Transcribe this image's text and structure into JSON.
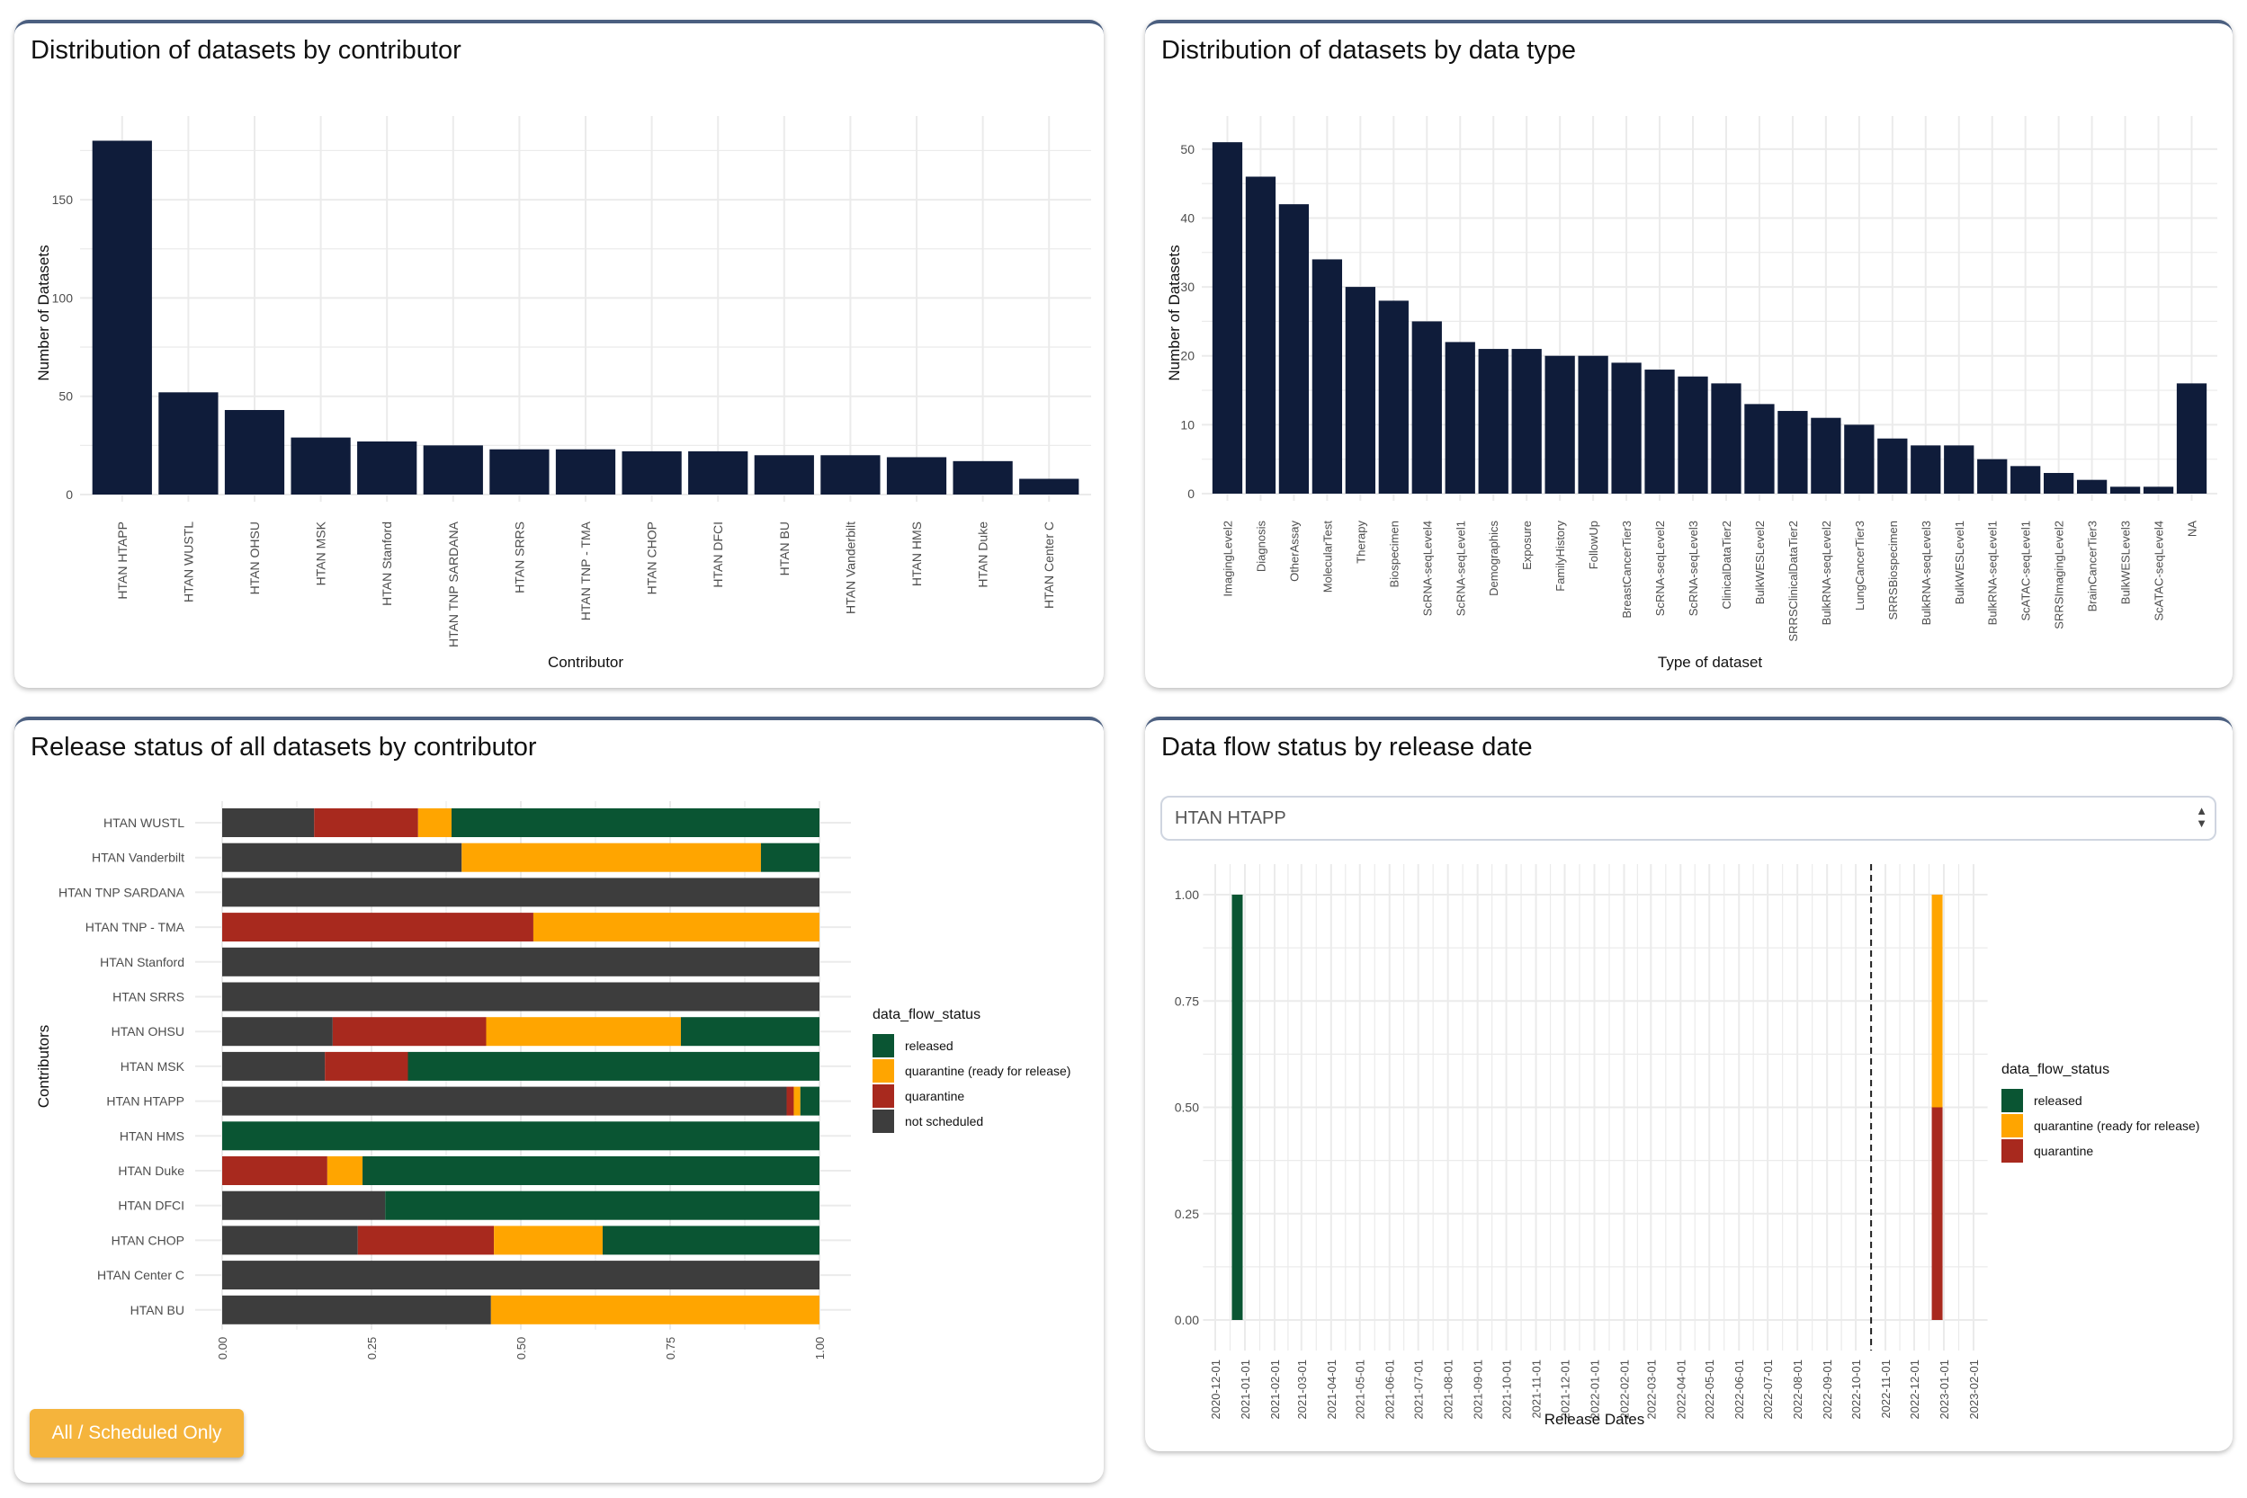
{
  "colors": {
    "bar": "#0f1c3a",
    "released": "#0a5533",
    "quarantine_ready": "#ffa500",
    "quarantine": "#a8291e",
    "not_scheduled": "#3d3d3d",
    "button": "#f5b43c",
    "panel_border": "#4b5f80"
  },
  "panels": {
    "contributor": {
      "title": "Distribution of datasets by contributor"
    },
    "datatype": {
      "title": "Distribution of datasets by data type"
    },
    "release": {
      "title": "Release status of all datasets by contributor",
      "button_label": "All / Scheduled Only"
    },
    "flow": {
      "title": "Data flow status by release date",
      "select_value": "HTAN HTAPP",
      "select_icon": "up-down-arrows-icon"
    }
  },
  "chart_data": [
    {
      "type": "bar",
      "xlabel": "Contributor",
      "ylabel": "Number of Datasets",
      "ylim": [
        0,
        188
      ],
      "yticks": [
        0,
        50,
        100,
        150
      ],
      "grid": true,
      "categories": [
        "HTAN HTAPP",
        "HTAN WUSTL",
        "HTAN OHSU",
        "HTAN MSK",
        "HTAN Stanford",
        "HTAN TNP SARDANA",
        "HTAN SRRS",
        "HTAN TNP - TMA",
        "HTAN CHOP",
        "HTAN DFCI",
        "HTAN BU",
        "HTAN Vanderbilt",
        "HTAN HMS",
        "HTAN Duke",
        "HTAN Center C"
      ],
      "values": [
        180,
        52,
        43,
        29,
        27,
        25,
        23,
        23,
        22,
        22,
        20,
        20,
        19,
        17,
        8
      ]
    },
    {
      "type": "bar",
      "xlabel": "Type of dataset",
      "ylabel": "Number of Datasets",
      "ylim": [
        0,
        53.5
      ],
      "yticks": [
        0,
        10,
        20,
        30,
        40,
        50
      ],
      "grid": true,
      "categories": [
        "ImagingLevel2",
        "Diagnosis",
        "OtherAssay",
        "MolecularTest",
        "Therapy",
        "Biospecimen",
        "ScRNA-seqLevel4",
        "ScRNA-seqLevel1",
        "Demographics",
        "Exposure",
        "FamilyHistory",
        "FollowUp",
        "BreastCancerTier3",
        "ScRNA-seqLevel2",
        "ScRNA-seqLevel3",
        "ClinicalDataTier2",
        "BulkWESLevel2",
        "SRRSClinicalDataTier2",
        "BulkRNA-seqLevel2",
        "LungCancerTier3",
        "SRRSBiospecimen",
        "BulkRNA-seqLevel3",
        "BulkWESLevel1",
        "BulkRNA-seqLevel1",
        "ScATAC-seqLevel1",
        "SRRSImagingLevel2",
        "BrainCancerTier3",
        "BulkWESLevel3",
        "ScATAC-seqLevel4",
        "NA"
      ],
      "values": [
        51,
        46,
        42,
        34,
        30,
        28,
        25,
        22,
        21,
        21,
        20,
        20,
        19,
        18,
        17,
        16,
        13,
        12,
        11,
        10,
        8,
        7,
        7,
        5,
        4,
        3,
        2,
        1,
        1,
        16
      ]
    },
    {
      "type": "bar",
      "orientation": "horizontal-stacked-fraction",
      "ylabel": "Contributors",
      "xlim": [
        0,
        1
      ],
      "xticks": [
        "0.00",
        "0.25",
        "0.50",
        "0.75",
        "1.00"
      ],
      "legend_title": "data_flow_status",
      "legend_position": "right",
      "legend": [
        "released",
        "quarantine (ready for release)",
        "quarantine",
        "not scheduled"
      ],
      "stack_order": [
        "not scheduled",
        "quarantine",
        "quarantine (ready for release)",
        "released"
      ],
      "categories": [
        "HTAN WUSTL",
        "HTAN Vanderbilt",
        "HTAN TNP SARDANA",
        "HTAN TNP - TMA",
        "HTAN Stanford",
        "HTAN SRRS",
        "HTAN OHSU",
        "HTAN MSK",
        "HTAN HTAPP",
        "HTAN HMS",
        "HTAN Duke",
        "HTAN DFCI",
        "HTAN CHOP",
        "HTAN Center C",
        "HTAN BU"
      ],
      "series": [
        {
          "name": "not scheduled",
          "values": [
            0.154,
            0.401,
            1,
            0,
            1,
            1,
            0.185,
            0.172,
            0.945,
            0,
            0,
            0.273,
            0.227,
            1,
            0.45
          ]
        },
        {
          "name": "quarantine",
          "values": [
            0.174,
            0,
            0,
            0.521,
            0,
            0,
            0.257,
            0.139,
            0.012,
            0,
            0.176,
            0,
            0.228,
            0,
            0
          ]
        },
        {
          "name": "quarantine (ready for release)",
          "values": [
            0.056,
            0.501,
            0,
            0.479,
            0,
            0,
            0.326,
            0,
            0.011,
            0,
            0.059,
            0,
            0.182,
            0,
            0.55
          ]
        },
        {
          "name": "released",
          "values": [
            0.616,
            0.098,
            0,
            0,
            0,
            0,
            0.232,
            0.689,
            0.032,
            1,
            0.765,
            0.727,
            0.363,
            0,
            0
          ]
        }
      ]
    },
    {
      "type": "bar",
      "orientation": "vertical-stacked-fraction",
      "xlabel": "Release Dates",
      "ylim": [
        0,
        1
      ],
      "yticks": [
        "0.00",
        "0.25",
        "0.50",
        "0.75",
        "1.00"
      ],
      "xlim": [
        "2020-11-22",
        "2023-02-10"
      ],
      "xticks": [
        "2020-12-01",
        "2021-01-01",
        "2021-02-01",
        "2021-03-01",
        "2021-04-01",
        "2021-05-01",
        "2021-06-01",
        "2021-07-01",
        "2021-08-01",
        "2021-09-01",
        "2021-10-01",
        "2021-11-01",
        "2021-12-01",
        "2022-01-01",
        "2022-02-01",
        "2022-03-01",
        "2022-04-01",
        "2022-05-01",
        "2022-06-01",
        "2022-07-01",
        "2022-08-01",
        "2022-09-01",
        "2022-10-01",
        "2022-11-01",
        "2022-12-01",
        "2023-01-01",
        "2023-02-01"
      ],
      "reference_line_date": "2022-10-17",
      "legend_title": "data_flow_status",
      "legend_position": "right",
      "legend": [
        "released",
        "quarantine (ready for release)",
        "quarantine"
      ],
      "bars": [
        {
          "date": "2020-12-24",
          "segments": [
            {
              "status": "released",
              "value": 1.0
            }
          ]
        },
        {
          "date": "2022-12-25",
          "segments": [
            {
              "status": "quarantine",
              "value": 0.5
            },
            {
              "status": "quarantine (ready for release)",
              "value": 0.5
            }
          ]
        }
      ]
    }
  ]
}
